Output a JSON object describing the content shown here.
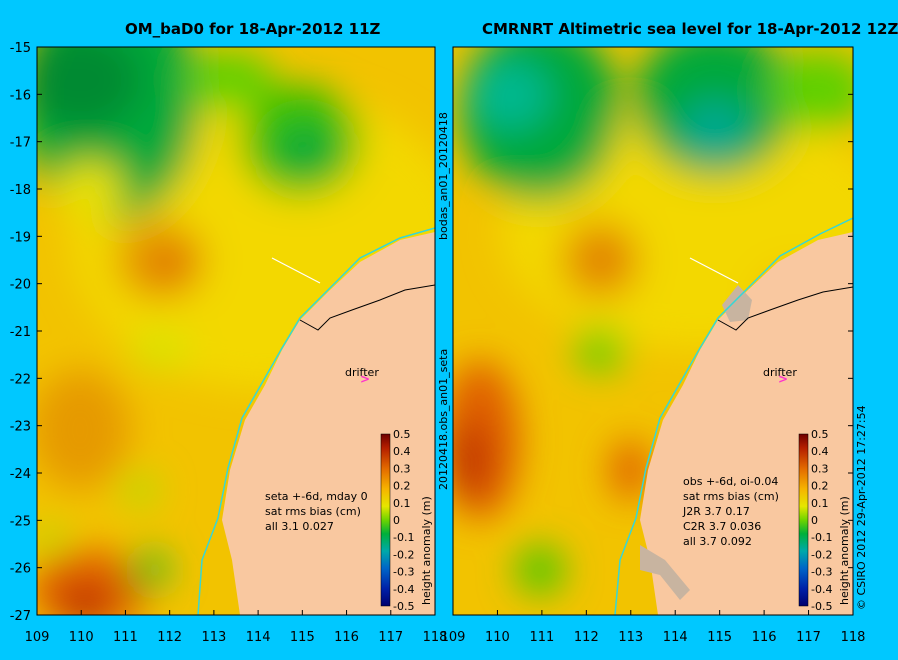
{
  "panels": [
    {
      "title": "OM_baD0 for 18-Apr-2012 11Z",
      "side_label": "bodas_an01_20120418",
      "stats": [
        "seta +-6d, mday 0",
        "sat rms bias (cm)",
        "all 3.1 0.027"
      ]
    },
    {
      "title": "CMRNRT Altimetric sea level  for 18-Apr-2012 12Z",
      "side_label": "20120418.obs_an01_seta",
      "stats": [
        "obs +-6d, oi-0.04",
        "sat rms bias (cm)",
        "J2R    3.7 0.17",
        "C2R    3.7 0.036",
        "all 3.7 0.092"
      ]
    }
  ],
  "lat_ticks": [
    "-15",
    "-16",
    "-17",
    "-18",
    "-19",
    "-20",
    "-21",
    "-22",
    "-23",
    "-24",
    "-25",
    "-26",
    "-27"
  ],
  "lon_ticks": [
    "109",
    "110",
    "111",
    "112",
    "113",
    "114",
    "115",
    "116",
    "117",
    "118"
  ],
  "drifter_label": "drifter",
  "colorbar": {
    "ticks": [
      "0.5",
      "0.4",
      "0.3",
      "0.2",
      "0.1",
      "0",
      "-0.1",
      "-0.2",
      "-0.3",
      "-0.4",
      "-0.5"
    ],
    "label": "height anomaly (m)"
  },
  "credit": "© CSIRO 2012   29-Apr-2012 17:27:54",
  "colors": {
    "background": "#00c8ff",
    "land": "#f9c8a0",
    "coast_cyan": "#36d6d6",
    "drifter": "#ff33cc"
  }
}
